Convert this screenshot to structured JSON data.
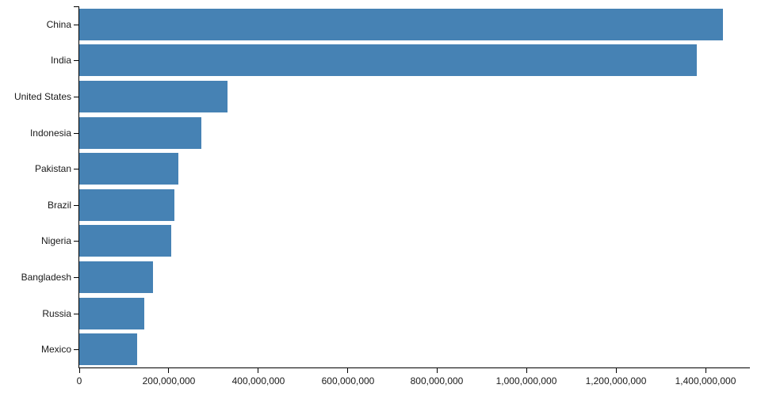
{
  "chart_data": {
    "type": "bar",
    "orientation": "horizontal",
    "title": "",
    "xlabel": "",
    "ylabel": "",
    "categories": [
      "China",
      "India",
      "United States",
      "Indonesia",
      "Pakistan",
      "Brazil",
      "Nigeria",
      "Bangladesh",
      "Russia",
      "Mexico"
    ],
    "values": [
      1439323776,
      1380004385,
      331002651,
      273523615,
      220892340,
      212559417,
      206139589,
      164689383,
      145934462,
      128932753
    ],
    "xlim": [
      0,
      1450000000
    ],
    "x_ticks": [
      0,
      200000000,
      400000000,
      600000000,
      800000000,
      1000000000,
      1200000000,
      1400000000
    ],
    "x_tick_labels": [
      "0",
      "200,000,000",
      "400,000,000",
      "600,000,000",
      "800,000,000",
      "1,000,000,000",
      "1,200,000,000",
      "1,400,000,000"
    ],
    "grid": false,
    "legend": false,
    "bar_color": "#4682b4",
    "axis_color": "#000000",
    "text_color": "#1a1a1a"
  }
}
